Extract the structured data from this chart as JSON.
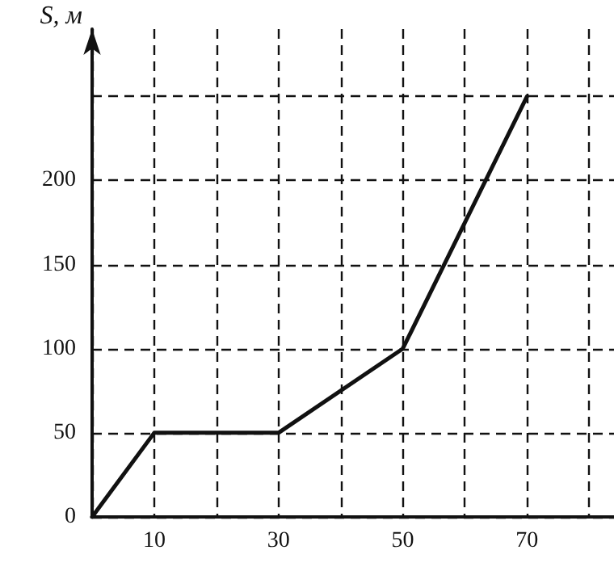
{
  "chart_data": {
    "type": "line",
    "ylabel": "S, м",
    "x": [
      0,
      10,
      30,
      50,
      70
    ],
    "series": [
      {
        "color": "#111111",
        "values": [
          0,
          50,
          50,
          100,
          250
        ]
      }
    ],
    "xlim": [
      0,
      84
    ],
    "ylim": [
      0,
      290
    ],
    "xticks": [
      {
        "value": 0,
        "label": null
      },
      10,
      {
        "value": 20,
        "label": null
      },
      30,
      {
        "value": 40,
        "label": null
      },
      50,
      {
        "value": 60,
        "label": null
      },
      70,
      {
        "value": 80,
        "label": null
      }
    ],
    "yticks": [
      0,
      50,
      100,
      150,
      200,
      {
        "value": 250,
        "label": null
      }
    ],
    "grid": true,
    "marker": "none",
    "line_style": "solid"
  }
}
